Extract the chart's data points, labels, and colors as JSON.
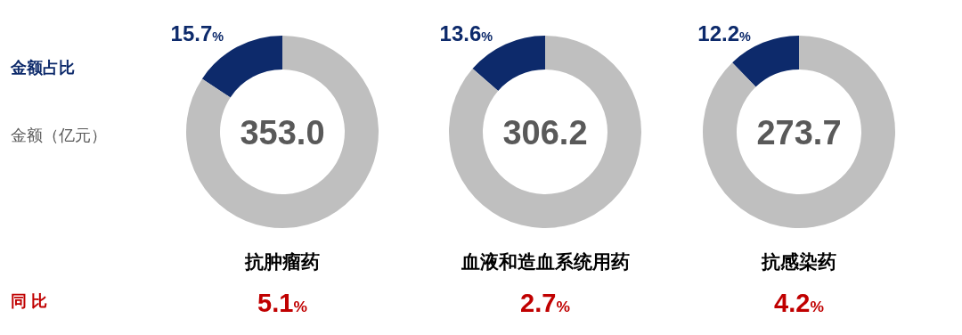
{
  "chart_data": [
    {
      "type": "other",
      "annotations": [
        "金额占比",
        "金额（亿元）",
        "同 比"
      ]
    },
    {
      "type": "donut",
      "title": "抗肿瘤药",
      "categories": [
        null,
        null
      ],
      "values": [
        15.7,
        84.3
      ],
      "colors": [
        "#0d2a6b",
        "#bfbfbf"
      ],
      "value_labels": [
        "15.7%",
        null
      ],
      "annotations": [
        "353.0",
        "5.1%"
      ]
    },
    {
      "type": "donut",
      "title": "血液和造血系统用药",
      "categories": [
        null,
        null
      ],
      "values": [
        13.6,
        86.4
      ],
      "colors": [
        "#0d2a6b",
        "#bfbfbf"
      ],
      "value_labels": [
        "13.6%",
        null
      ],
      "annotations": [
        "306.2",
        "2.7%"
      ]
    },
    {
      "type": "donut",
      "title": "抗感染药",
      "categories": [
        null,
        null
      ],
      "values": [
        12.2,
        87.8
      ],
      "colors": [
        "#0d2a6b",
        "#bfbfbf"
      ],
      "value_labels": [
        "12.2%",
        null
      ],
      "annotations": [
        "273.7",
        "4.2%"
      ]
    }
  ]
}
